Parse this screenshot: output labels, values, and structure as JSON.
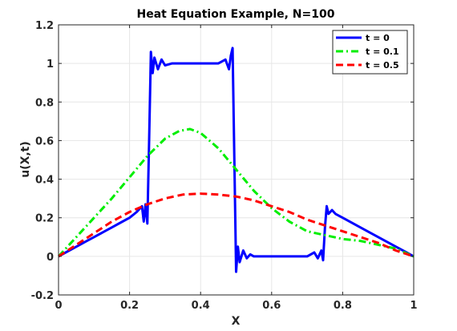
{
  "chart_data": {
    "type": "line",
    "title": "Heat Equation Example, N=100",
    "xlabel": "X",
    "ylabel": "u(X,t)",
    "xlim": [
      0,
      1
    ],
    "ylim": [
      -0.2,
      1.2
    ],
    "xticks": [
      "0",
      "0.2",
      "0.4",
      "0.6",
      "0.8",
      "1"
    ],
    "yticks": [
      "-0.2",
      "0",
      "0.2",
      "0.4",
      "0.6",
      "0.8",
      "1",
      "1.2"
    ],
    "grid": true,
    "legend": "top-right",
    "series": [
      {
        "name": "t = 0",
        "color": "#0000ff",
        "style": "solid",
        "x": [
          0,
          0.02,
          0.05,
          0.08,
          0.1,
          0.13,
          0.15,
          0.18,
          0.2,
          0.22,
          0.235,
          0.24,
          0.245,
          0.25,
          0.255,
          0.26,
          0.265,
          0.27,
          0.28,
          0.29,
          0.3,
          0.32,
          0.35,
          0.4,
          0.45,
          0.47,
          0.48,
          0.485,
          0.49,
          0.495,
          0.5,
          0.505,
          0.51,
          0.52,
          0.53,
          0.54,
          0.55,
          0.6,
          0.65,
          0.7,
          0.72,
          0.73,
          0.74,
          0.745,
          0.75,
          0.755,
          0.76,
          0.77,
          0.78,
          0.8,
          0.85,
          0.9,
          0.95,
          0.98,
          1.0
        ],
        "y": [
          0,
          0.02,
          0.05,
          0.08,
          0.1,
          0.13,
          0.15,
          0.18,
          0.2,
          0.23,
          0.26,
          0.18,
          0.27,
          0.17,
          0.6,
          1.06,
          0.95,
          1.03,
          0.97,
          1.02,
          0.99,
          1.0,
          1.0,
          1.0,
          1.0,
          1.02,
          0.97,
          1.04,
          1.08,
          0.5,
          -0.08,
          0.05,
          -0.03,
          0.03,
          -0.01,
          0.01,
          0.0,
          0.0,
          0.0,
          0.0,
          0.02,
          -0.01,
          0.03,
          -0.02,
          0.15,
          0.26,
          0.22,
          0.24,
          0.22,
          0.2,
          0.15,
          0.1,
          0.05,
          0.02,
          0.0
        ]
      },
      {
        "name": "t = 0.1",
        "color": "#00ee00",
        "style": "dash-dot",
        "x": [
          0,
          0.05,
          0.1,
          0.15,
          0.2,
          0.25,
          0.3,
          0.34,
          0.37,
          0.4,
          0.45,
          0.5,
          0.55,
          0.6,
          0.65,
          0.7,
          0.75,
          0.8,
          0.85,
          0.9,
          0.95,
          1.0
        ],
        "y": [
          0,
          0.1,
          0.2,
          0.3,
          0.41,
          0.52,
          0.61,
          0.65,
          0.66,
          0.64,
          0.56,
          0.45,
          0.34,
          0.25,
          0.18,
          0.13,
          0.11,
          0.09,
          0.08,
          0.06,
          0.04,
          0.0
        ]
      },
      {
        "name": "t = 0.5",
        "color": "#ff0000",
        "style": "dashed",
        "x": [
          0,
          0.05,
          0.1,
          0.15,
          0.2,
          0.25,
          0.3,
          0.35,
          0.4,
          0.45,
          0.5,
          0.55,
          0.6,
          0.65,
          0.7,
          0.75,
          0.8,
          0.85,
          0.9,
          0.95,
          1.0
        ],
        "y": [
          0,
          0.06,
          0.12,
          0.18,
          0.23,
          0.27,
          0.3,
          0.32,
          0.325,
          0.32,
          0.31,
          0.29,
          0.26,
          0.23,
          0.19,
          0.16,
          0.13,
          0.1,
          0.07,
          0.03,
          0.0
        ]
      }
    ]
  }
}
